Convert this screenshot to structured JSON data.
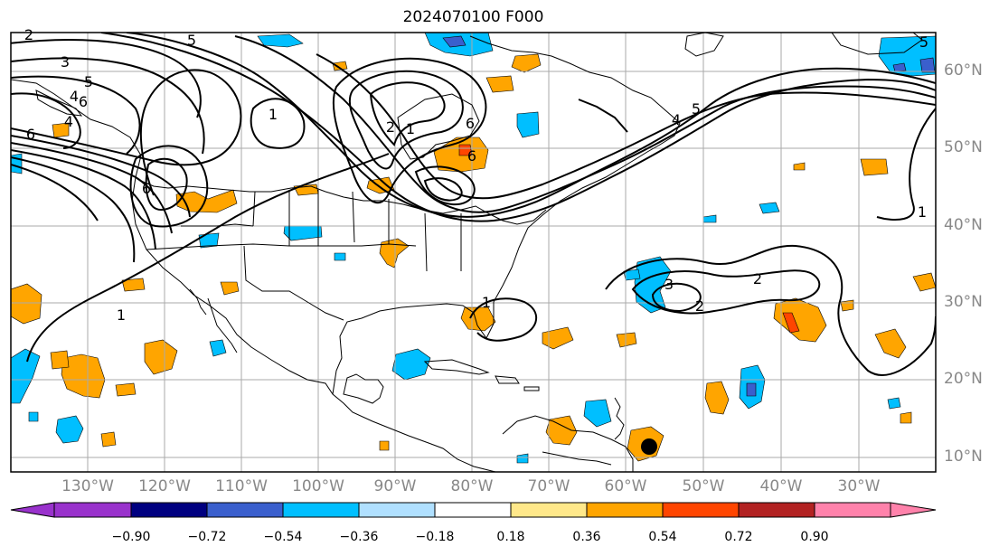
{
  "title": "2024070100 F000",
  "lat_labels": [
    "60°N",
    "50°N",
    "40°N",
    "30°N",
    "20°N",
    "10°N"
  ],
  "lon_labels": [
    "130°W",
    "120°W",
    "110°W",
    "100°W",
    "90°W",
    "80°W",
    "70°W",
    "60°W",
    "50°W",
    "40°W",
    "30°W"
  ],
  "colorbar": {
    "ticks": [
      "−0.90",
      "−0.72",
      "−0.54",
      "−0.36",
      "−0.18",
      "0.18",
      "0.36",
      "0.54",
      "0.72",
      "0.90"
    ],
    "colors": [
      "#9932cc",
      "#000080",
      "#3a5fcd",
      "#00bfff",
      "#b0e0ff",
      "#ffffff",
      "#ffe88a",
      "#ffa500",
      "#ff4500",
      "#b22222",
      "#ff82ab",
      "#ff82ab"
    ]
  },
  "contour_labels": [
    "2",
    "3",
    "5",
    "5",
    "4",
    "6",
    "6",
    "4",
    "6",
    "1",
    "2",
    "1",
    "5",
    "6",
    "4",
    "5",
    "6",
    "1",
    "3",
    "2",
    "2",
    "1",
    "1"
  ],
  "markers": {
    "storm_center": "filled black circle near 57°W 11°N"
  }
}
